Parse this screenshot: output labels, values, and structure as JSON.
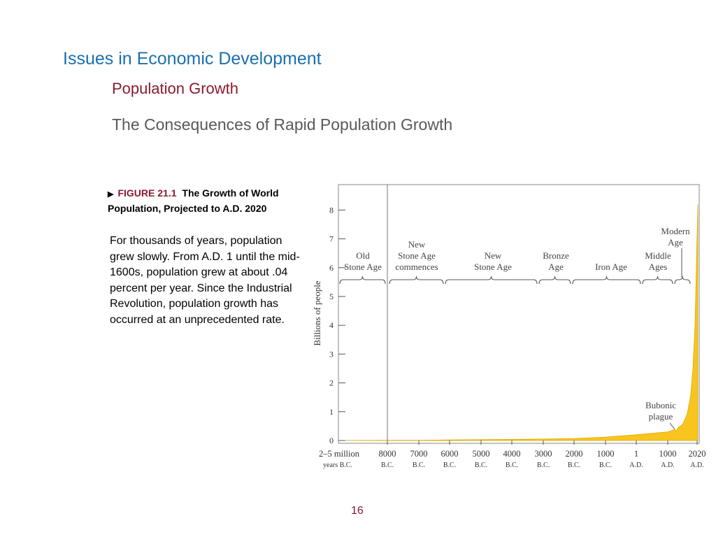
{
  "slide": {
    "title": "Issues in Economic Development",
    "subtitle": "Population Growth",
    "heading": "The Consequences of Rapid Population Growth",
    "page_number": "16"
  },
  "caption": {
    "figure_label": "FIGURE 21.1",
    "figure_title": "The Growth of World Population, Projected to A.D. 2020",
    "body": "For thousands of years, population grew slowly.  From A.D. 1 until the mid-1600s, population grew at about .04 percent per year. Since the Industrial Revolution, population growth has occurred at an unprecedented rate."
  },
  "chart_data": {
    "type": "area",
    "title": "",
    "ylabel": "Billions of people",
    "ylim": [
      0,
      9
    ],
    "yticks": [
      0,
      1,
      2,
      3,
      4,
      5,
      6,
      7,
      8
    ],
    "xticks": [
      {
        "line1": "2–5 million",
        "line2": "years B.C."
      },
      {
        "line1": "8000",
        "line2": "B.C."
      },
      {
        "line1": "7000",
        "line2": "B.C."
      },
      {
        "line1": "6000",
        "line2": "B.C."
      },
      {
        "line1": "5000",
        "line2": "B.C."
      },
      {
        "line1": "4000",
        "line2": "B.C."
      },
      {
        "line1": "3000",
        "line2": "B.C."
      },
      {
        "line1": "2000",
        "line2": "B.C."
      },
      {
        "line1": "1000",
        "line2": "B.C."
      },
      {
        "line1": "1",
        "line2": "A.D."
      },
      {
        "line1": "1000",
        "line2": "A.D."
      },
      {
        "line1": "2020",
        "line2": "A.D."
      }
    ],
    "x": [
      "2–5 million years B.C.",
      "8000 B.C.",
      "7000 B.C.",
      "6000 B.C.",
      "5000 B.C.",
      "4000 B.C.",
      "3000 B.C.",
      "2000 B.C.",
      "1000 B.C.",
      "1 A.D.",
      "1000 A.D.",
      "1300 A.D.",
      "1350 A.D.",
      "1500 A.D.",
      "1650 A.D.",
      "1750 A.D.",
      "1800 A.D.",
      "1850 A.D.",
      "1900 A.D.",
      "1950 A.D.",
      "1975 A.D.",
      "2000 A.D.",
      "2020 A.D."
    ],
    "values": [
      0,
      0.01,
      0.01,
      0.02,
      0.03,
      0.04,
      0.05,
      0.07,
      0.12,
      0.2,
      0.3,
      0.38,
      0.33,
      0.45,
      0.55,
      0.75,
      0.95,
      1.2,
      1.6,
      2.5,
      4.0,
      6.1,
      8.2
    ],
    "fill_color": "#f7c51e",
    "eras": [
      {
        "label": [
          "Old",
          "Stone Age"
        ]
      },
      {
        "label": [
          "New",
          "Stone Age",
          "commences"
        ]
      },
      {
        "label": [
          "New",
          "Stone Age"
        ]
      },
      {
        "label": [
          "Bronze",
          "Age"
        ]
      },
      {
        "label": [
          "Iron Age"
        ]
      },
      {
        "label": [
          "Middle",
          "Ages"
        ]
      },
      {
        "label": [
          "Modern",
          "Age"
        ]
      }
    ],
    "annotations": [
      {
        "text": [
          "Bubonic",
          "plague"
        ]
      }
    ]
  }
}
